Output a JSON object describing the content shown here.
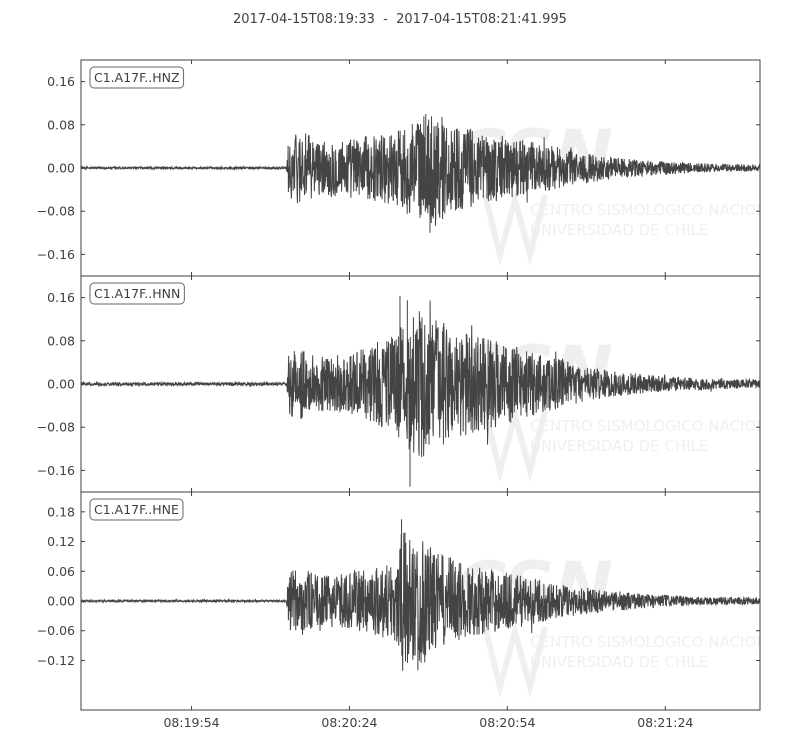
{
  "title": "2017-04-15T08:19:33  -  2017-04-15T08:21:41.995",
  "chart_data": [
    {
      "type": "line",
      "station": "C1.A17F..HNZ",
      "ylim": [
        -0.2,
        0.2
      ],
      "yticks": [
        0.16,
        0.08,
        0.0,
        -0.08,
        -0.16
      ],
      "ytick_labels": [
        "0.16",
        "0.08",
        "0.00",
        "−0.08",
        "−0.16"
      ],
      "p_arrival_s": 39.3,
      "envelope": [
        [
          0,
          0.002
        ],
        [
          39,
          0.002
        ],
        [
          39.5,
          0.06
        ],
        [
          42,
          0.07
        ],
        [
          45,
          0.05
        ],
        [
          50,
          0.055
        ],
        [
          55,
          0.06
        ],
        [
          60,
          0.07
        ],
        [
          62,
          0.085
        ],
        [
          65,
          0.095
        ],
        [
          67,
          0.11
        ],
        [
          70,
          0.085
        ],
        [
          75,
          0.07
        ],
        [
          80,
          0.06
        ],
        [
          85,
          0.05
        ],
        [
          90,
          0.04
        ],
        [
          95,
          0.03
        ],
        [
          100,
          0.022
        ],
        [
          105,
          0.016
        ],
        [
          110,
          0.013
        ],
        [
          115,
          0.01
        ],
        [
          120,
          0.008
        ],
        [
          129,
          0.006
        ]
      ],
      "peaks": [
        {
          "t": 66.3,
          "v": -0.12
        },
        {
          "t": 65.5,
          "v": 0.1
        }
      ]
    },
    {
      "type": "line",
      "station": "C1.A17F..HNN",
      "ylim": [
        -0.2,
        0.2
      ],
      "yticks": [
        0.16,
        0.08,
        0.0,
        -0.08,
        -0.16
      ],
      "ytick_labels": [
        "0.16",
        "0.08",
        "0.00",
        "−0.08",
        "−0.16"
      ],
      "p_arrival_s": 39.3,
      "envelope": [
        [
          0,
          0.003
        ],
        [
          39,
          0.003
        ],
        [
          39.5,
          0.06
        ],
        [
          42,
          0.065
        ],
        [
          45,
          0.05
        ],
        [
          50,
          0.055
        ],
        [
          55,
          0.07
        ],
        [
          60,
          0.1
        ],
        [
          62,
          0.12
        ],
        [
          65,
          0.14
        ],
        [
          67,
          0.12
        ],
        [
          70,
          0.11
        ],
        [
          75,
          0.09
        ],
        [
          80,
          0.08
        ],
        [
          85,
          0.06
        ],
        [
          90,
          0.05
        ],
        [
          95,
          0.035
        ],
        [
          100,
          0.025
        ],
        [
          105,
          0.02
        ],
        [
          110,
          0.015
        ],
        [
          115,
          0.012
        ],
        [
          120,
          0.01
        ],
        [
          129,
          0.008
        ]
      ],
      "peaks": [
        {
          "t": 62.5,
          "v": -0.19
        },
        {
          "t": 60.6,
          "v": 0.163
        },
        {
          "t": 62,
          "v": 0.155
        }
      ]
    },
    {
      "type": "line",
      "station": "C1.A17F..HNE",
      "ylim": [
        -0.22,
        0.22
      ],
      "yticks": [
        0.18,
        0.12,
        0.06,
        0.0,
        -0.06,
        -0.12
      ],
      "ytick_labels": [
        "0.18",
        "0.12",
        "0.06",
        "0.00",
        "−0.06",
        "−0.12"
      ],
      "p_arrival_s": 39.3,
      "envelope": [
        [
          0,
          0.002
        ],
        [
          39,
          0.002
        ],
        [
          39.5,
          0.06
        ],
        [
          42,
          0.07
        ],
        [
          45,
          0.05
        ],
        [
          50,
          0.055
        ],
        [
          55,
          0.065
        ],
        [
          60,
          0.09
        ],
        [
          61,
          0.15
        ],
        [
          63,
          0.12
        ],
        [
          65,
          0.13
        ],
        [
          67,
          0.1
        ],
        [
          70,
          0.09
        ],
        [
          75,
          0.07
        ],
        [
          80,
          0.06
        ],
        [
          85,
          0.05
        ],
        [
          90,
          0.035
        ],
        [
          95,
          0.028
        ],
        [
          100,
          0.022
        ],
        [
          105,
          0.017
        ],
        [
          110,
          0.013
        ],
        [
          115,
          0.01
        ],
        [
          120,
          0.008
        ],
        [
          129,
          0.007
        ]
      ],
      "peaks": [
        {
          "t": 60.9,
          "v": 0.165
        },
        {
          "t": 64,
          "v": -0.14
        }
      ]
    }
  ],
  "x_axis": {
    "start": "2017-04-15T08:19:33",
    "end": "2017-04-15T08:21:41.995",
    "tick_labels": [
      "08:19:54",
      "08:20:24",
      "08:20:54",
      "08:21:24"
    ],
    "tick_times": [
      "2017-04-15T08:19:54",
      "2017-04-15T08:20:24",
      "2017-04-15T08:20:54",
      "2017-04-15T08:21:24"
    ]
  },
  "watermark": {
    "logo_text": "CSN",
    "line1": "CENTRO SISMOLOGICO NACIONAL",
    "line2": "UNIVERSIDAD DE CHILE"
  },
  "colors": {
    "trace": "#444444",
    "axis": "#404040",
    "box_border": "#666666"
  }
}
